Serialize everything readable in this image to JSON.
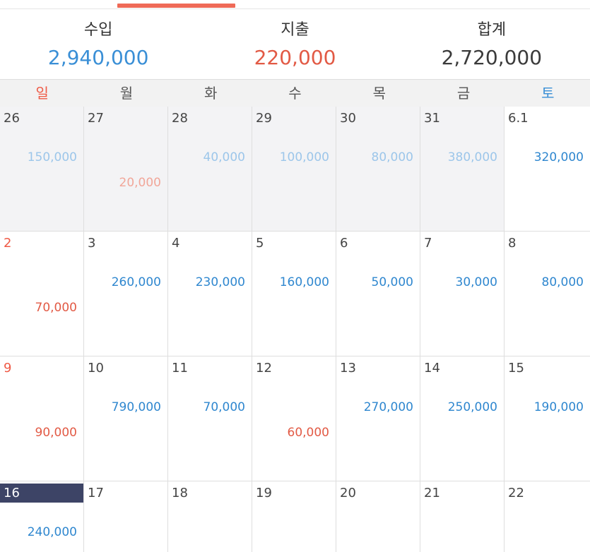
{
  "summary": {
    "income_label": "수입",
    "income_value": "2,940,000",
    "expense_label": "지출",
    "expense_value": "220,000",
    "total_label": "합계",
    "total_value": "2,720,000"
  },
  "weekdays": [
    "일",
    "월",
    "화",
    "수",
    "목",
    "금",
    "토"
  ],
  "weeks": [
    [
      {
        "day": "26",
        "income": "150,000",
        "expense": ""
      },
      {
        "day": "27",
        "income": "",
        "expense": "20,000"
      },
      {
        "day": "28",
        "income": "40,000",
        "expense": ""
      },
      {
        "day": "29",
        "income": "100,000",
        "expense": ""
      },
      {
        "day": "30",
        "income": "80,000",
        "expense": ""
      },
      {
        "day": "31",
        "income": "380,000",
        "expense": ""
      },
      {
        "day": "6.1",
        "income": "320,000",
        "expense": ""
      }
    ],
    [
      {
        "day": "2",
        "income": "",
        "expense": "70,000"
      },
      {
        "day": "3",
        "income": "260,000",
        "expense": ""
      },
      {
        "day": "4",
        "income": "230,000",
        "expense": ""
      },
      {
        "day": "5",
        "income": "160,000",
        "expense": ""
      },
      {
        "day": "6",
        "income": "50,000",
        "expense": ""
      },
      {
        "day": "7",
        "income": "30,000",
        "expense": ""
      },
      {
        "day": "8",
        "income": "80,000",
        "expense": ""
      }
    ],
    [
      {
        "day": "9",
        "income": "",
        "expense": "90,000"
      },
      {
        "day": "10",
        "income": "790,000",
        "expense": ""
      },
      {
        "day": "11",
        "income": "70,000",
        "expense": ""
      },
      {
        "day": "12",
        "income": "",
        "expense": "60,000"
      },
      {
        "day": "13",
        "income": "270,000",
        "expense": ""
      },
      {
        "day": "14",
        "income": "250,000",
        "expense": ""
      },
      {
        "day": "15",
        "income": "190,000",
        "expense": ""
      }
    ],
    [
      {
        "day": "16",
        "income": "240,000",
        "expense": ""
      },
      {
        "day": "17",
        "income": "",
        "expense": ""
      },
      {
        "day": "18",
        "income": "",
        "expense": ""
      },
      {
        "day": "19",
        "income": "",
        "expense": ""
      },
      {
        "day": "20",
        "income": "",
        "expense": ""
      },
      {
        "day": "21",
        "income": "",
        "expense": ""
      },
      {
        "day": "22",
        "income": "",
        "expense": ""
      }
    ]
  ]
}
